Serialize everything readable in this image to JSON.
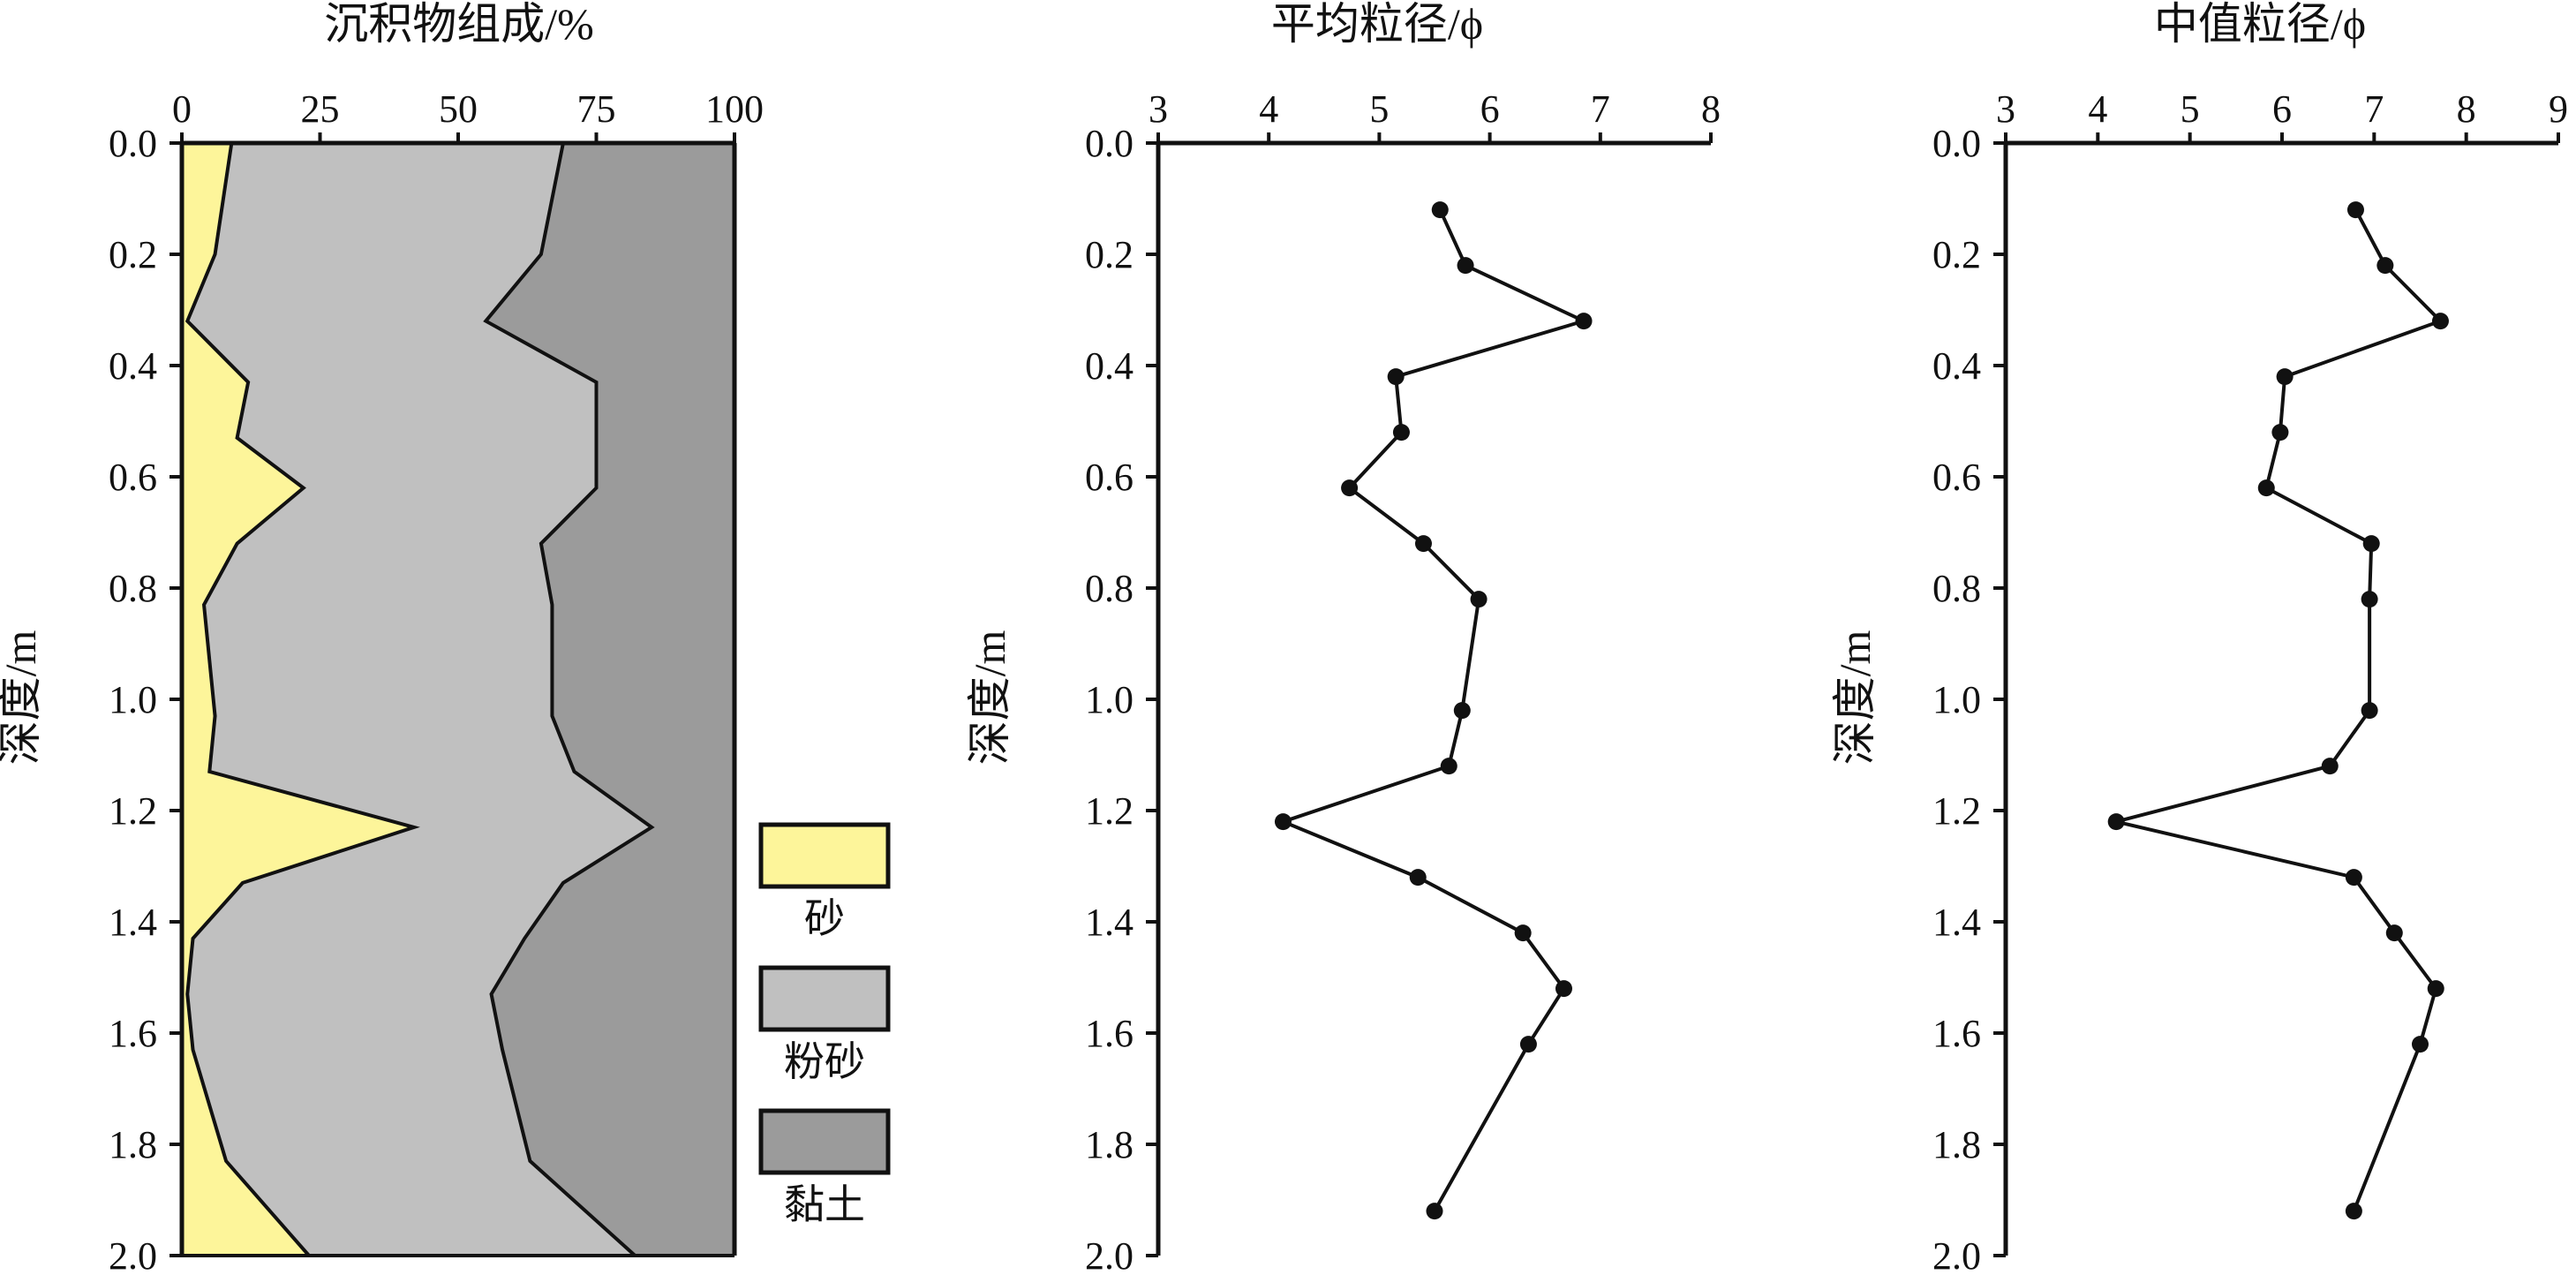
{
  "chart_data": [
    {
      "type": "area",
      "title": "沉积物组成/%",
      "ylabel": "深度/m",
      "xlabel": "",
      "xlim": [
        0,
        100
      ],
      "ylim": [
        0,
        2.0
      ],
      "x_ticks": [
        "0",
        "25",
        "50",
        "75",
        "100"
      ],
      "y_ticks": [
        "0.0",
        "0.2",
        "0.4",
        "0.6",
        "0.8",
        "1.0",
        "1.2",
        "1.4",
        "1.6",
        "1.8",
        "2.0"
      ],
      "depth": [
        0.0,
        0.2,
        0.32,
        0.43,
        0.53,
        0.62,
        0.72,
        0.83,
        1.03,
        1.13,
        1.23,
        1.33,
        1.43,
        1.53,
        1.63,
        1.83,
        2.0
      ],
      "series": [
        {
          "name": "砂",
          "color": "#fdf59a",
          "cumulative_upper": [
            9,
            6,
            1,
            12,
            10,
            22,
            10,
            4,
            6,
            5,
            42,
            11,
            2,
            1,
            2,
            8,
            23
          ]
        },
        {
          "name": "粉砂",
          "color": "#c0c0c0",
          "cumulative_upper": [
            69,
            65,
            55,
            75,
            75,
            75,
            65,
            67,
            67,
            71,
            85,
            69,
            62,
            56,
            58,
            63,
            82
          ]
        },
        {
          "name": "黏土",
          "color": "#9b9b9b",
          "cumulative_upper": [
            100,
            100,
            100,
            100,
            100,
            100,
            100,
            100,
            100,
            100,
            100,
            100,
            100,
            100,
            100,
            100,
            100
          ]
        }
      ],
      "legend_position": "bottom-right"
    },
    {
      "type": "line",
      "title": "平均粒径/ϕ",
      "ylabel": "深度/m",
      "xlabel": "",
      "xlim": [
        3,
        8
      ],
      "ylim": [
        0,
        2.0
      ],
      "x_ticks": [
        "3",
        "4",
        "5",
        "6",
        "7",
        "8"
      ],
      "y_ticks": [
        "0.0",
        "0.2",
        "0.4",
        "0.6",
        "0.8",
        "1.0",
        "1.2",
        "1.4",
        "1.6",
        "1.8",
        "2.0"
      ],
      "points": [
        {
          "x": 5.55,
          "y": 0.12
        },
        {
          "x": 5.78,
          "y": 0.22
        },
        {
          "x": 6.85,
          "y": 0.32
        },
        {
          "x": 5.15,
          "y": 0.42
        },
        {
          "x": 5.2,
          "y": 0.52
        },
        {
          "x": 4.73,
          "y": 0.62
        },
        {
          "x": 5.4,
          "y": 0.72
        },
        {
          "x": 5.9,
          "y": 0.82
        },
        {
          "x": 5.75,
          "y": 1.02
        },
        {
          "x": 5.63,
          "y": 1.12
        },
        {
          "x": 4.13,
          "y": 1.22
        },
        {
          "x": 5.35,
          "y": 1.32
        },
        {
          "x": 6.3,
          "y": 1.42
        },
        {
          "x": 6.67,
          "y": 1.52
        },
        {
          "x": 6.35,
          "y": 1.62
        },
        {
          "x": 5.5,
          "y": 1.92
        }
      ]
    },
    {
      "type": "line",
      "title": "中值粒径/ϕ",
      "ylabel": "深度/m",
      "xlabel": "",
      "xlim": [
        3,
        9
      ],
      "ylim": [
        0,
        2.0
      ],
      "x_ticks": [
        "3",
        "4",
        "5",
        "6",
        "7",
        "8",
        "9"
      ],
      "y_ticks": [
        "0.0",
        "0.2",
        "0.4",
        "0.6",
        "0.8",
        "1.0",
        "1.2",
        "1.4",
        "1.6",
        "1.8",
        "2.0"
      ],
      "points": [
        {
          "x": 6.8,
          "y": 0.12
        },
        {
          "x": 7.12,
          "y": 0.22
        },
        {
          "x": 7.72,
          "y": 0.32
        },
        {
          "x": 6.03,
          "y": 0.42
        },
        {
          "x": 5.98,
          "y": 0.52
        },
        {
          "x": 5.83,
          "y": 0.62
        },
        {
          "x": 6.97,
          "y": 0.72
        },
        {
          "x": 6.95,
          "y": 0.82
        },
        {
          "x": 6.95,
          "y": 1.02
        },
        {
          "x": 6.52,
          "y": 1.12
        },
        {
          "x": 4.2,
          "y": 1.22
        },
        {
          "x": 6.78,
          "y": 1.32
        },
        {
          "x": 7.22,
          "y": 1.42
        },
        {
          "x": 7.67,
          "y": 1.52
        },
        {
          "x": 7.5,
          "y": 1.62
        },
        {
          "x": 6.78,
          "y": 1.92
        }
      ]
    }
  ]
}
